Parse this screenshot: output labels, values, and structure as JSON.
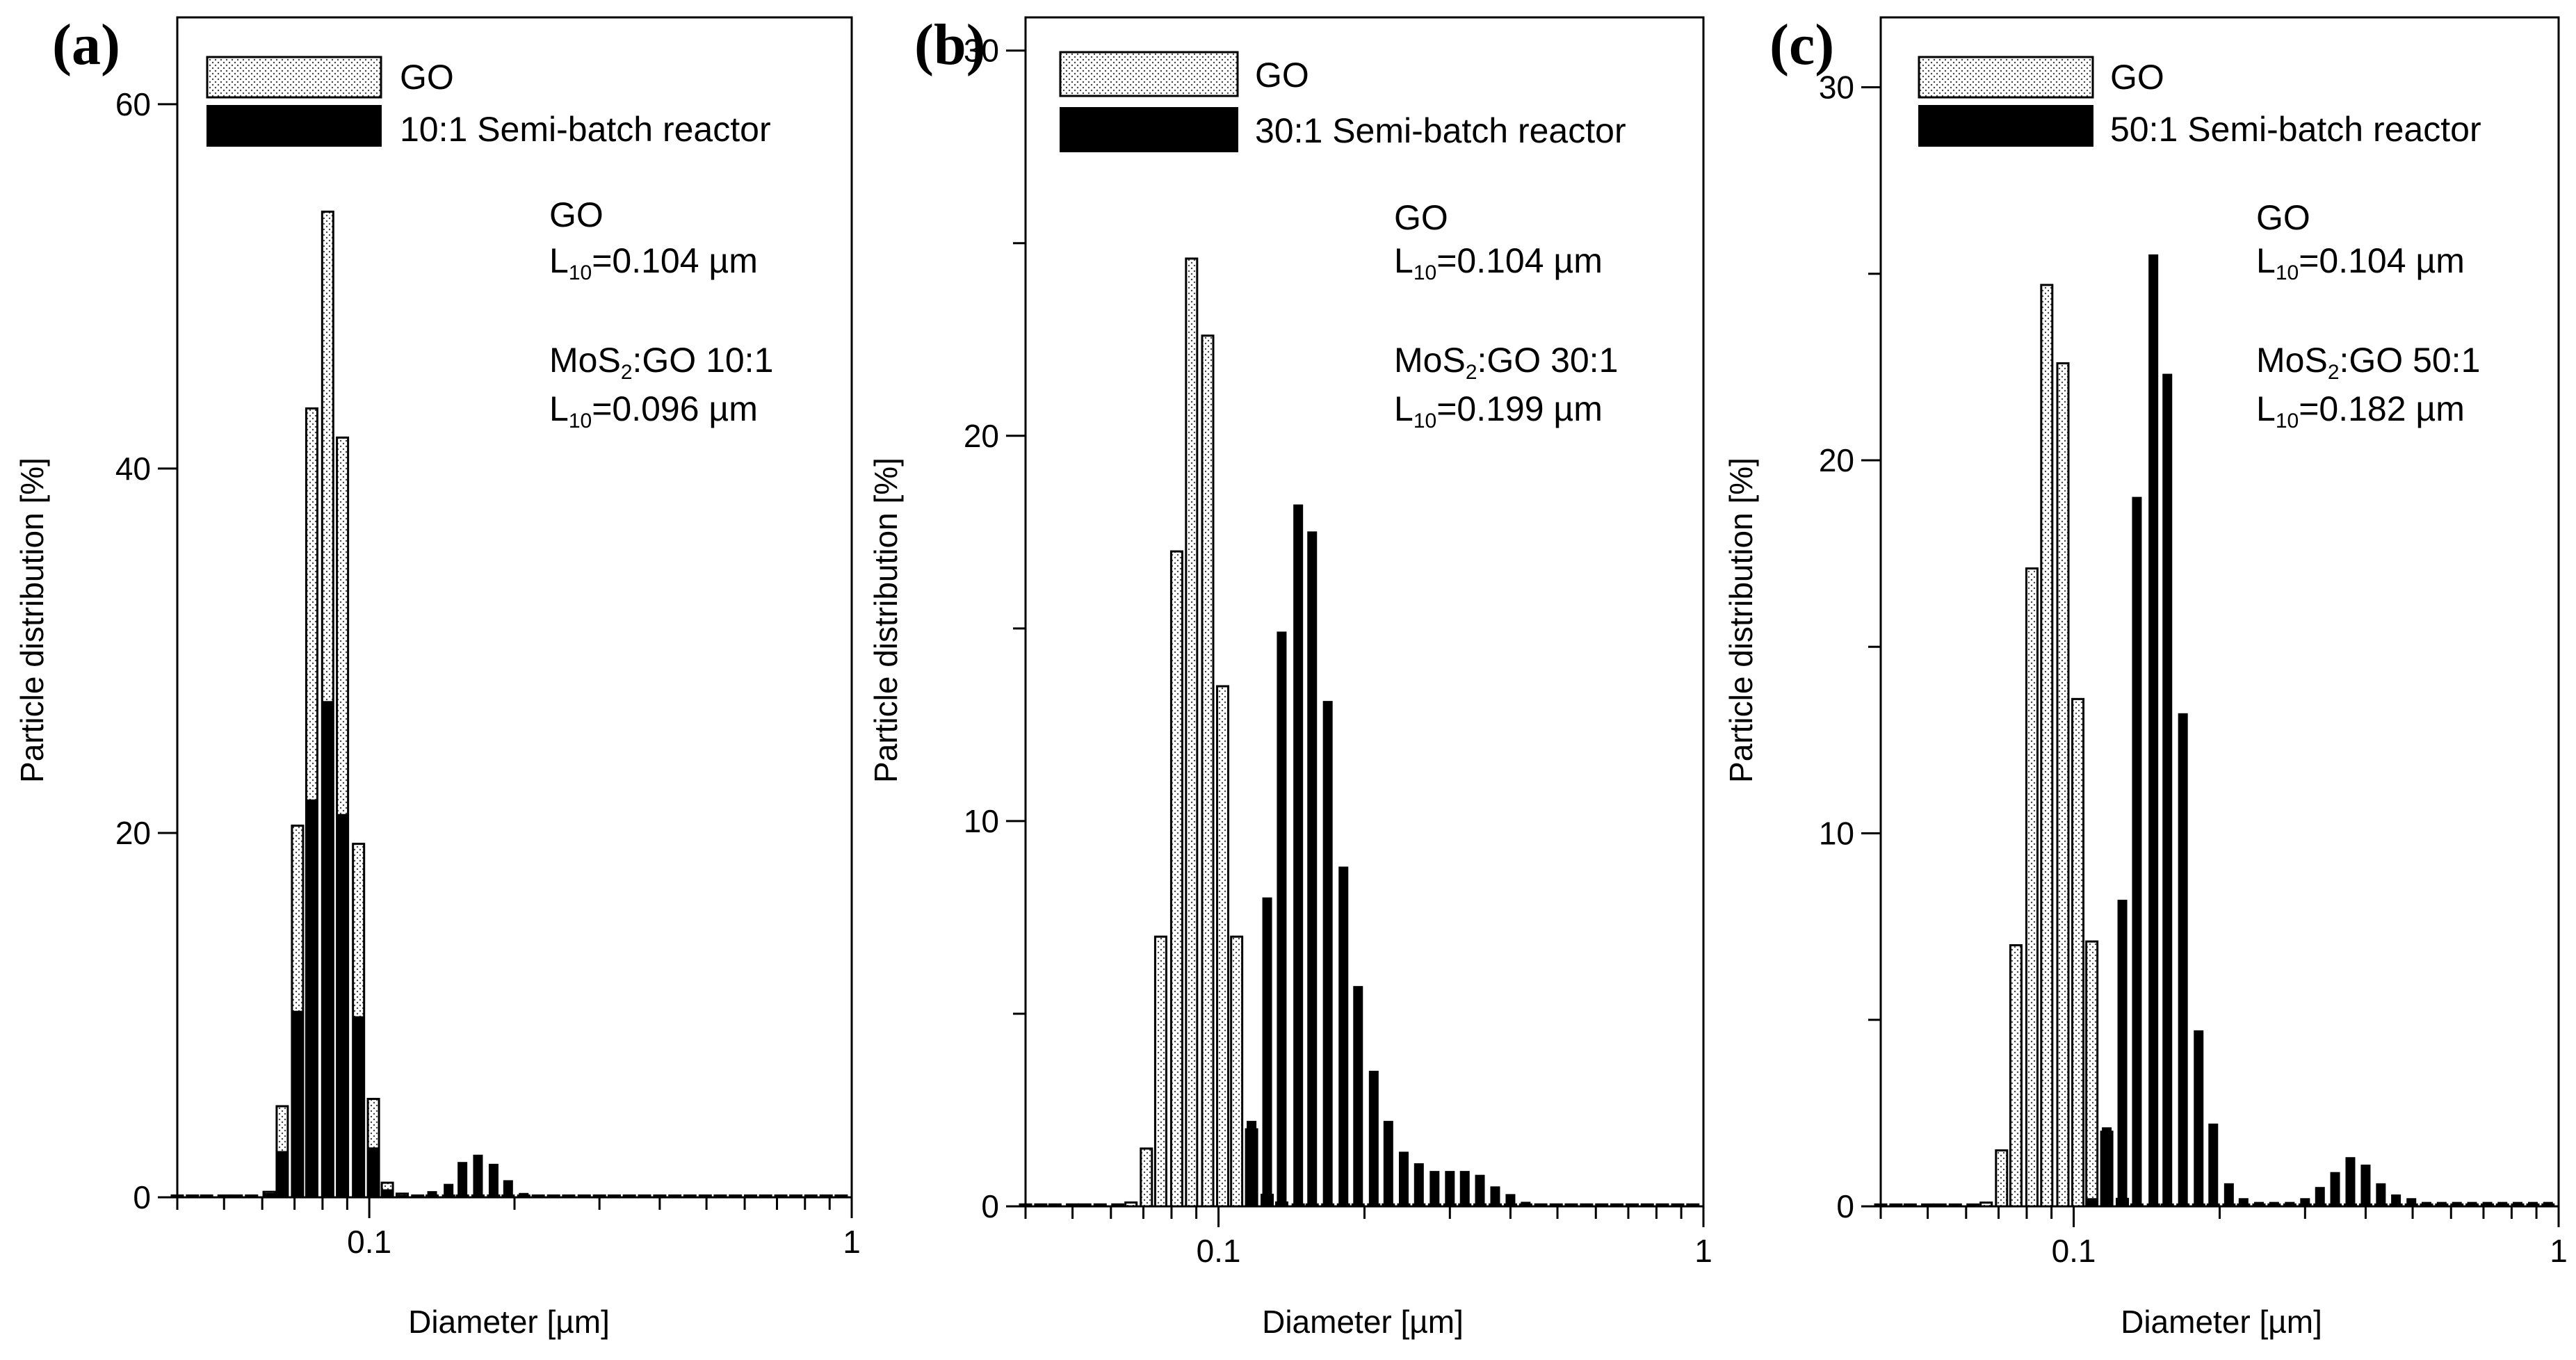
{
  "chart_data": [
    {
      "type": "bar",
      "panel_label": "(a)",
      "xlabel": "Diameter [µm]",
      "ylabel": "Particle distribution [%]",
      "xscale": "log",
      "xlim": [
        0.04,
        1
      ],
      "ylim": [
        0,
        64
      ],
      "yticks": [
        0,
        20,
        40,
        60
      ],
      "ytick_labels": [
        "0",
        "20",
        "40",
        "60"
      ],
      "xtick_labels": [
        "0.1",
        "1"
      ],
      "legend": [
        "GO",
        "10:1 Semi-batch reactor"
      ],
      "legend_position": "top",
      "annotation": {
        "go_name": "GO",
        "go_l10_prefix": "L",
        "go_l10_sub": "10",
        "go_l10_value": "=0.104 µm",
        "mos_name_a": "MoS",
        "mos_name_sub": "2",
        "mos_name_b": ":GO 10:1",
        "mos_l10_prefix": "L",
        "mos_l10_sub": "10",
        "mos_l10_value": "=0.096 µm"
      },
      "x": [
        0.04,
        0.043,
        0.046,
        0.05,
        0.053,
        0.057,
        0.062,
        0.066,
        0.071,
        0.076,
        0.082,
        0.088,
        0.095,
        0.102,
        0.109,
        0.117,
        0.126,
        0.135,
        0.146,
        0.156,
        0.168,
        0.181,
        0.194,
        0.209,
        0.224,
        0.241,
        0.259,
        0.279,
        0.3,
        0.322,
        0.346,
        0.372,
        0.4,
        0.43,
        0.462,
        0.497,
        0.534,
        0.574,
        0.617,
        0.663,
        0.713,
        0.766,
        0.823,
        0.885,
        0.951
      ],
      "series": [
        {
          "name": "GO",
          "values": [
            0.1,
            0.1,
            0.1,
            0.1,
            0.1,
            0.1,
            0.3,
            5.0,
            20.4,
            43.3,
            54.1,
            41.7,
            19.4,
            5.4,
            0.8,
            0.2,
            0.1,
            0.1,
            0.1,
            0.1,
            0.1,
            0.1,
            0.1,
            0.1,
            0.1,
            0.1,
            0.1,
            0.1,
            0.1,
            0.1,
            0.1,
            0.1,
            0.1,
            0.1,
            0.1,
            0.1,
            0.1,
            0.1,
            0.1,
            0.1,
            0.1,
            0.1,
            0.1,
            0.1,
            0.1
          ]
        },
        {
          "name": "10:1 Semi-batch reactor",
          "values": [
            0.0,
            0.0,
            0.0,
            0.0,
            0.0,
            0.0,
            0.2,
            2.5,
            10.2,
            21.8,
            27.2,
            21.0,
            9.9,
            2.7,
            0.4,
            0.1,
            0.1,
            0.3,
            0.7,
            1.9,
            2.3,
            1.8,
            0.9,
            0.2,
            0.1,
            0.0,
            0.0,
            0.0,
            0.0,
            0.0,
            0.0,
            0.0,
            0.0,
            0.0,
            0.0,
            0.0,
            0.0,
            0.0,
            0.0,
            0.0,
            0.0,
            0.0,
            0.0,
            0.0,
            0.0
          ]
        }
      ]
    },
    {
      "type": "bar",
      "panel_label": "(b)",
      "xlabel": "Diameter [µm]",
      "ylabel": "Particle distribution [%]",
      "xscale": "log",
      "xlim": [
        0.04,
        1
      ],
      "ylim": [
        0,
        30.5
      ],
      "yticks": [
        0,
        5,
        10,
        15,
        20,
        25,
        30
      ],
      "ytick_labels": [
        "0",
        "",
        "10",
        "",
        "20",
        "",
        "30"
      ],
      "xtick_labels": [
        "0.1",
        "1"
      ],
      "legend": [
        "GO",
        "30:1 Semi-batch reactor"
      ],
      "legend_position": "top",
      "annotation": {
        "go_name": "GO",
        "go_l10_prefix": "L",
        "go_l10_sub": "10",
        "go_l10_value": "=0.104 µm",
        "mos_name_a": "MoS",
        "mos_name_sub": "2",
        "mos_name_b": ":GO 30:1",
        "mos_l10_prefix": "L",
        "mos_l10_sub": "10",
        "mos_l10_value": "=0.199 µm"
      },
      "x": [
        0.04,
        0.043,
        0.046,
        0.05,
        0.053,
        0.057,
        0.062,
        0.066,
        0.071,
        0.076,
        0.082,
        0.088,
        0.095,
        0.102,
        0.109,
        0.117,
        0.126,
        0.135,
        0.146,
        0.156,
        0.168,
        0.181,
        0.194,
        0.209,
        0.224,
        0.241,
        0.259,
        0.279,
        0.3,
        0.322,
        0.346,
        0.372,
        0.4,
        0.43,
        0.462,
        0.497,
        0.534,
        0.574,
        0.617,
        0.663,
        0.713,
        0.766,
        0.823,
        0.885,
        0.951
      ],
      "series": [
        {
          "name": "GO",
          "values": [
            0.05,
            0.05,
            0.05,
            0.05,
            0.05,
            0.05,
            0.05,
            0.1,
            1.5,
            7.0,
            17.0,
            24.6,
            22.6,
            13.5,
            7.0,
            2.0,
            0.3,
            0.1,
            0.05,
            0.05,
            0.05,
            0.05,
            0.05,
            0.05,
            0.05,
            0.05,
            0.05,
            0.05,
            0.05,
            0.05,
            0.05,
            0.05,
            0.05,
            0.05,
            0.05,
            0.05,
            0.05,
            0.05,
            0.05,
            0.05,
            0.05,
            0.05,
            0.05,
            0.05,
            0.05
          ]
        },
        {
          "name": "30:1 Semi-batch reactor",
          "values": [
            0.0,
            0.0,
            0.0,
            0.0,
            0.0,
            0.0,
            0.0,
            0.0,
            0.0,
            0.0,
            0.0,
            0.0,
            0.0,
            0.0,
            0.0,
            2.2,
            8.0,
            14.9,
            18.2,
            17.5,
            13.1,
            8.8,
            5.7,
            3.5,
            2.2,
            1.4,
            1.1,
            0.9,
            0.9,
            0.9,
            0.8,
            0.5,
            0.3,
            0.1,
            0.05,
            0.05,
            0.05,
            0.05,
            0.05,
            0.05,
            0.05,
            0.05,
            0.05,
            0.05,
            0.05
          ]
        }
      ]
    },
    {
      "type": "bar",
      "panel_label": "(c)",
      "xlabel": "Diameter [µm]",
      "ylabel": "Particle distribution [%]",
      "xscale": "log",
      "xlim": [
        0.04,
        1
      ],
      "ylim": [
        0,
        31.5
      ],
      "yticks": [
        0,
        5,
        10,
        15,
        20,
        25,
        30
      ],
      "ytick_labels": [
        "0",
        "",
        "10",
        "",
        "20",
        "",
        "30"
      ],
      "xtick_labels": [
        "0.1",
        "1"
      ],
      "legend": [
        "GO",
        "50:1 Semi-batch reactor"
      ],
      "legend_position": "top",
      "annotation": {
        "go_name": "GO",
        "go_l10_prefix": "L",
        "go_l10_sub": "10",
        "go_l10_value": "=0.104 µm",
        "mos_name_a": "MoS",
        "mos_name_sub": "2",
        "mos_name_b": ":GO 50:1",
        "mos_l10_prefix": "L",
        "mos_l10_sub": "10",
        "mos_l10_value": "=0.182 µm"
      },
      "x": [
        0.04,
        0.043,
        0.046,
        0.05,
        0.053,
        0.057,
        0.062,
        0.066,
        0.071,
        0.076,
        0.082,
        0.088,
        0.095,
        0.102,
        0.109,
        0.117,
        0.126,
        0.135,
        0.146,
        0.156,
        0.168,
        0.181,
        0.194,
        0.209,
        0.224,
        0.241,
        0.259,
        0.279,
        0.3,
        0.322,
        0.346,
        0.372,
        0.4,
        0.43,
        0.462,
        0.497,
        0.534,
        0.574,
        0.617,
        0.663,
        0.713,
        0.766,
        0.823,
        0.885,
        0.951
      ],
      "series": [
        {
          "name": "GO",
          "values": [
            0.05,
            0.05,
            0.05,
            0.05,
            0.05,
            0.05,
            0.05,
            0.1,
            1.5,
            7.0,
            17.1,
            24.7,
            22.6,
            13.6,
            7.1,
            2.0,
            0.2,
            0.05,
            0.05,
            0.05,
            0.05,
            0.05,
            0.05,
            0.05,
            0.05,
            0.05,
            0.05,
            0.05,
            0.05,
            0.05,
            0.05,
            0.05,
            0.05,
            0.05,
            0.05,
            0.05,
            0.05,
            0.05,
            0.05,
            0.05,
            0.05,
            0.05,
            0.05,
            0.05,
            0.05
          ]
        },
        {
          "name": "50:1 Semi-batch reactor",
          "values": [
            0.0,
            0.0,
            0.0,
            0.0,
            0.0,
            0.0,
            0.0,
            0.0,
            0.0,
            0.0,
            0.0,
            0.0,
            0.0,
            0.0,
            0.2,
            2.1,
            8.2,
            19.0,
            25.5,
            22.3,
            13.2,
            4.7,
            2.2,
            0.6,
            0.2,
            0.1,
            0.1,
            0.1,
            0.2,
            0.5,
            0.9,
            1.3,
            1.1,
            0.6,
            0.3,
            0.2,
            0.1,
            0.1,
            0.1,
            0.1,
            0.1,
            0.1,
            0.1,
            0.1,
            0.1
          ]
        }
      ]
    }
  ]
}
